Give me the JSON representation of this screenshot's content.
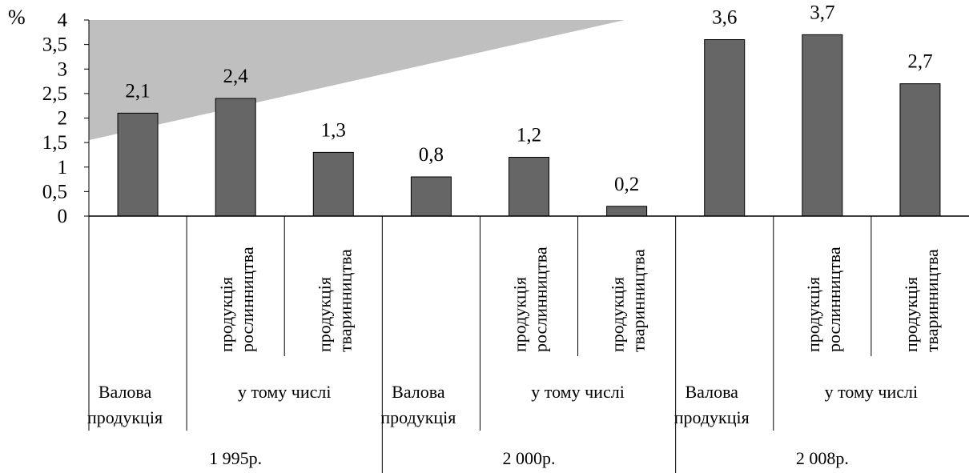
{
  "chart_data": {
    "type": "bar",
    "unit_label": "%",
    "ylim": [
      0,
      4
    ],
    "yticks": [
      "0",
      "0,5",
      "1",
      "1,5",
      "2",
      "2,5",
      "3",
      "3,5",
      "4"
    ],
    "bar_color": "#666666",
    "shade_color": "#bfbfbf",
    "values": [
      2.1,
      2.4,
      1.3,
      0.8,
      1.2,
      0.2,
      3.6,
      3.7,
      2.7
    ],
    "value_labels": [
      "2,1",
      "2,4",
      "1,3",
      "0,8",
      "1,2",
      "0,2",
      "3,6",
      "3,7",
      "2,7"
    ],
    "subcategory_labels": [
      "",
      "продукція рослинництва",
      "продукція тваринництва",
      "",
      "продукція рослинництва",
      "продукція тваринництва",
      "",
      "продукція рослинництва",
      "продукція тваринництва"
    ],
    "groups": [
      {
        "year": "1 995р.",
        "gross_label": "Валова продукція",
        "subtotal_label": "у тому числі"
      },
      {
        "year": "2 000р.",
        "gross_label": "Валова продукція",
        "subtotal_label": "у тому числі"
      },
      {
        "year": "2 008р.",
        "gross_label": "Валова продукція",
        "subtotal_label": "у тому числі"
      }
    ]
  }
}
